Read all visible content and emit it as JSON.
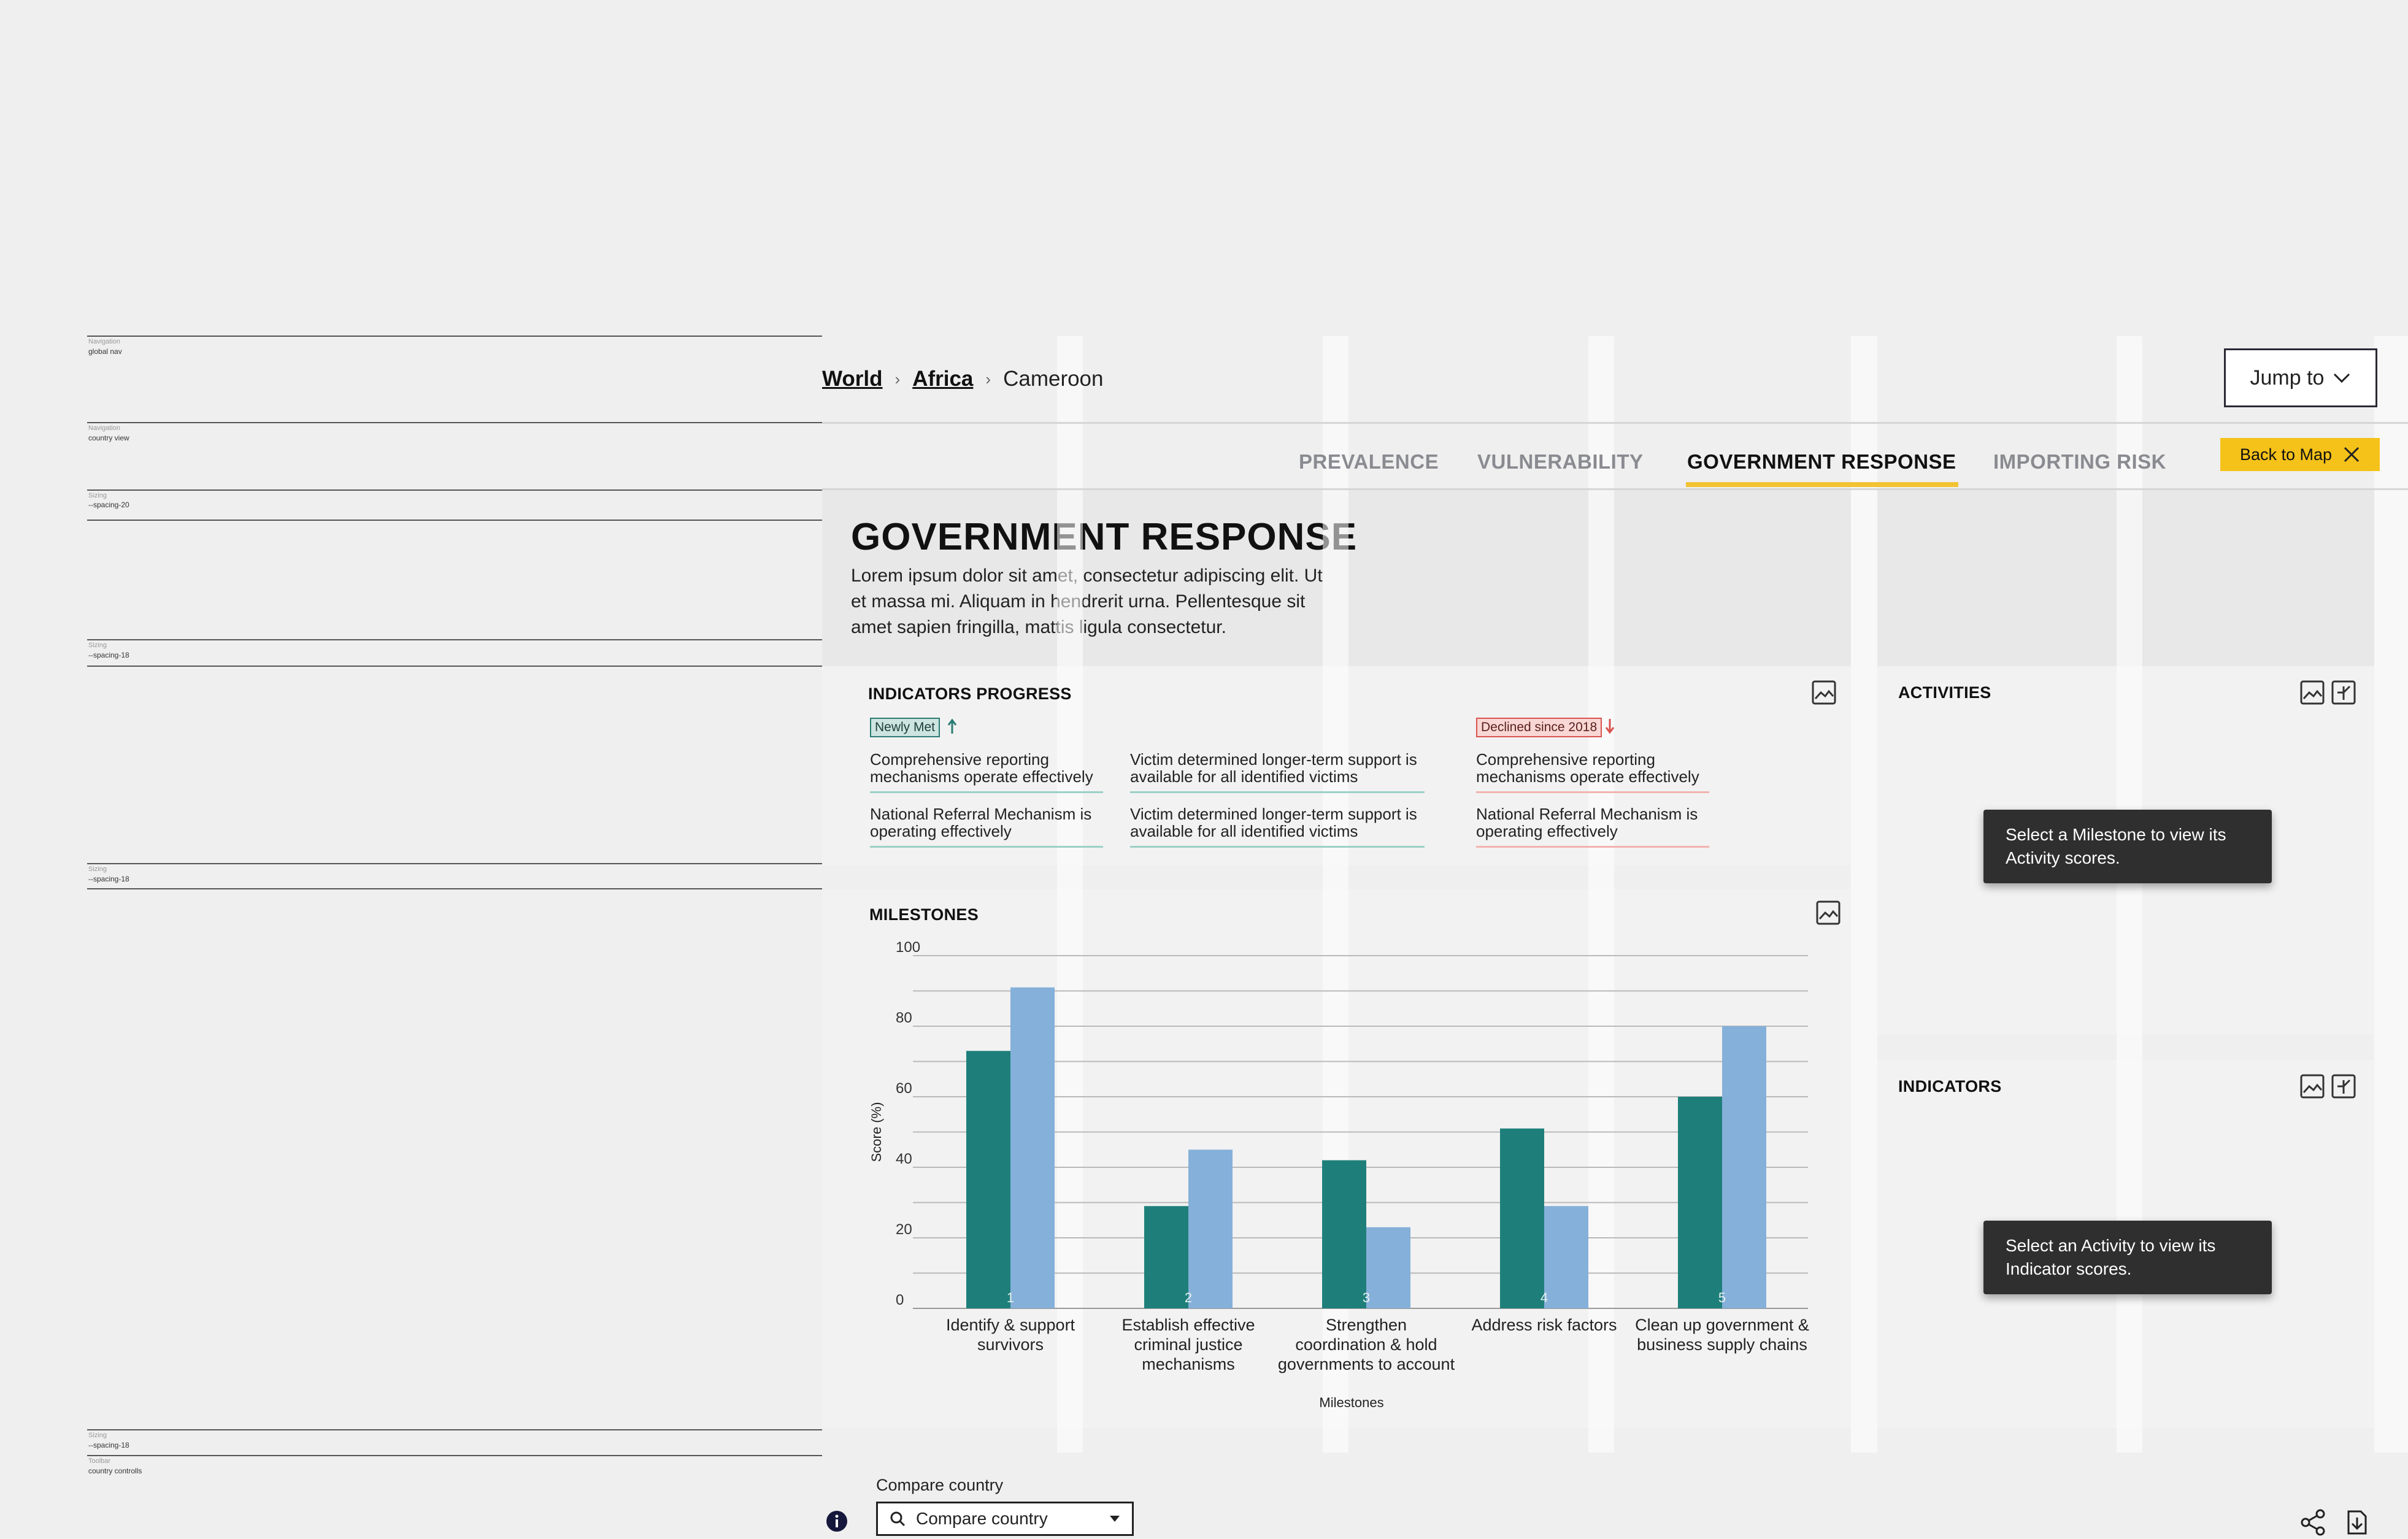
{
  "annotations": [
    {
      "category": "Navigation",
      "name": "global nav"
    },
    {
      "category": "Navigation",
      "name": "country view"
    },
    {
      "category": "Sizing",
      "name": "--spacing-20"
    },
    {
      "category": "Sizing",
      "name": "--spacing-18"
    },
    {
      "category": "Sizing",
      "name": "--spacing-18"
    },
    {
      "category": "Sizing",
      "name": "--spacing-18"
    },
    {
      "category": "Toolbar",
      "name": "country controlls"
    }
  ],
  "breadcrumb": {
    "world": "World",
    "region": "Africa",
    "country": "Cameroon"
  },
  "jump": {
    "label": "Jump to"
  },
  "tabs": [
    {
      "label": "PREVALENCE"
    },
    {
      "label": "VULNERABILITY"
    },
    {
      "label": "GOVERNMENT RESPONSE",
      "active": true
    },
    {
      "label": "IMPORTING RISK"
    }
  ],
  "back_to_map": {
    "label": "Back to Map"
  },
  "hero": {
    "title": "GOVERNMENT RESPONSE",
    "description": "Lorem ipsum dolor sit amet, consectetur adipiscing elit. Ut et massa mi. Aliquam in hendrerit urna. Pellentesque sit amet sapien fringilla, mattis ligula consectetur."
  },
  "indicators_progress": {
    "title": "INDICATORS PROGRESS",
    "newly_met_label": "Newly Met",
    "declined_label": "Declined since 2018",
    "newly_met_items": [
      "Comprehensive reporting mechanisms operate effectively",
      "National Referral Mechanism is operating effectively",
      "Victim determined longer-term support is available for all identified victims",
      "Victim determined longer-term support is available for all identified victims"
    ],
    "declined_items": [
      "Comprehensive reporting mechanisms operate effectively",
      "National Referral Mechanism is operating effectively"
    ]
  },
  "milestones": {
    "title": "MILESTONES"
  },
  "activities": {
    "title": "ACTIVITIES",
    "tooltip": "Select a Milestone to view its Activity scores."
  },
  "indicators": {
    "title": "INDICATORS",
    "tooltip": "Select an Activity to view its Indicator scores."
  },
  "footer": {
    "compare_label": "Compare country",
    "compare_placeholder": "Compare country"
  },
  "colors": {
    "accent": "#f5c21a",
    "series_dark": "#1e7f7a",
    "series_light": "#85b0d9",
    "tooltip_bg": "#2f2f2f"
  },
  "icons": [
    "image-icon",
    "collapse-icon",
    "chevron-down-icon",
    "close-icon",
    "search-icon",
    "info-icon",
    "share-icon",
    "download-icon",
    "arrow-up-icon",
    "arrow-down-icon"
  ],
  "chart_data": {
    "type": "bar",
    "categories": [
      "Identify & support survivors",
      "Establish effective criminal justice mechanisms",
      "Strengthen coordination & hold governments to account",
      "Address risk factors",
      "Clean up government & business supply chains"
    ],
    "bar_labels": [
      "1",
      "2",
      "3",
      "4",
      "5"
    ],
    "series": [
      {
        "values": [
          73,
          29,
          42,
          51,
          60
        ]
      },
      {
        "values": [
          91,
          45,
          23,
          29,
          80
        ]
      }
    ],
    "xlabel": "Milestones",
    "ylabel": "Score (%)",
    "ylim": [
      0,
      100
    ],
    "yticks": [
      0,
      20,
      40,
      60,
      80,
      100
    ],
    "grid": true
  }
}
